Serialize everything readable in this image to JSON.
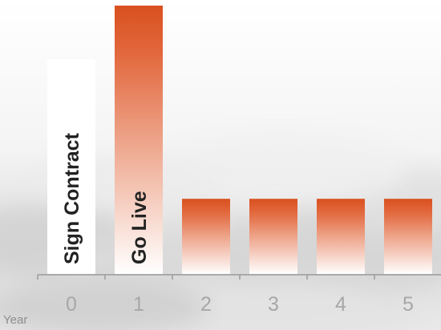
{
  "chart_data": {
    "type": "bar",
    "categories": [
      "0",
      "1",
      "2",
      "3",
      "4",
      "5"
    ],
    "values": [
      80,
      100,
      28,
      28,
      28,
      28
    ],
    "ylim": [
      0,
      100
    ],
    "xlabel": "Year",
    "ylabel": "",
    "title": "",
    "bar_labels": [
      "Sign Contract",
      "Go Live",
      "",
      "",
      "",
      ""
    ],
    "grid": false,
    "legend": "none"
  },
  "colors": {
    "bar_top": "#d9501f",
    "bar_bottom": "#ffffff",
    "label_bar_fill": "#ffffff",
    "axis": "#9a9a9a",
    "tick_text": "#a7a7a7"
  }
}
